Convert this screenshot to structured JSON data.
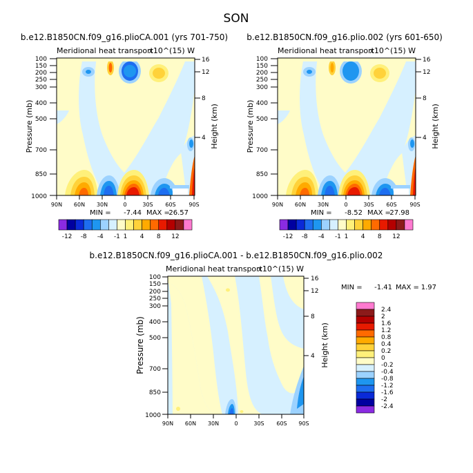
{
  "figure_title": "SON",
  "colors": {
    "background": "#ffffff",
    "main_cb": [
      "#8a2be2",
      "#0000a0",
      "#0a2ad8",
      "#1e6ef0",
      "#1e96f0",
      "#9cd2ff",
      "#d6f0ff",
      "#fffcc8",
      "#fff07a",
      "#ffd23a",
      "#ffaa00",
      "#ff6a00",
      "#e81a00",
      "#b40000",
      "#8c1a1a",
      "#ff7ad0"
    ],
    "diff_cb": [
      "#8a2be2",
      "#0000a0",
      "#0a2ad8",
      "#1e6ef0",
      "#1e96f0",
      "#9cd2ff",
      "#d6f0ff",
      "#fffcc8",
      "#fff07a",
      "#ffd23a",
      "#ffaa00",
      "#ff6a00",
      "#e81a00",
      "#b40000",
      "#8c1a1a",
      "#ff7ad0"
    ]
  },
  "chart_data": [
    {
      "type": "heatmap",
      "title": "b.e12.B1850CN.f09_g16.plioCA.001 (yrs 701-750)",
      "subtitle": "Meridional heat transport",
      "units": "x10^(15) W",
      "xlabel": "",
      "ylabel": "Pressure (mb)",
      "right_label": "Height (km)",
      "x_ticks": [
        "90N",
        "60N",
        "30N",
        "0",
        "30S",
        "60S",
        "90S"
      ],
      "y_ticks": [
        "100",
        "150",
        "200",
        "250",
        "300",
        "400",
        "500",
        "700",
        "850",
        "1000"
      ],
      "right_ticks": [
        "16",
        "12",
        "8",
        "4"
      ],
      "min": -7.44,
      "max": 26.57,
      "min_label": "MIN =",
      "min_value": "-7.44",
      "max_label": "MAX =",
      "max_value": "26.57"
    },
    {
      "type": "heatmap",
      "title": "b.e12.B1850CN.f09_g16.plio.002 (yrs 601-650)",
      "subtitle": "Meridional heat transport",
      "units": "x10^(15) W",
      "xlabel": "",
      "ylabel": "Pressure (mb)",
      "right_label": "Height (km)",
      "x_ticks": [
        "90N",
        "60N",
        "30N",
        "0",
        "30S",
        "60S",
        "90S"
      ],
      "y_ticks": [
        "100",
        "150",
        "200",
        "250",
        "300",
        "400",
        "500",
        "700",
        "850",
        "1000"
      ],
      "right_ticks": [
        "16",
        "12",
        "8",
        "4"
      ],
      "min": -8.52,
      "max": 27.98,
      "min_label": "MIN =",
      "min_value": "-8.52",
      "max_label": "MAX =",
      "max_value": "27.98"
    },
    {
      "type": "heatmap",
      "title": "b.e12.B1850CN.f09_g16.plioCA.001 - b.e12.B1850CN.f09_g16.plio.002",
      "subtitle": "Meridional heat transport",
      "units": "x10^(15) W",
      "xlabel": "",
      "ylabel": "Pressure (mb)",
      "right_label": "Height (km)",
      "x_ticks": [
        "90N",
        "60N",
        "30N",
        "0",
        "30S",
        "60S",
        "90S"
      ],
      "y_ticks": [
        "100",
        "150",
        "200",
        "250",
        "300",
        "400",
        "500",
        "700",
        "850",
        "1000"
      ],
      "right_ticks": [
        "16",
        "12",
        "8",
        "4"
      ],
      "min": -1.41,
      "max": 1.97,
      "min_label": "MIN =",
      "min_value": "-1.41",
      "max_label": "MAX =",
      "max_value": "1.97"
    }
  ],
  "colorbars": {
    "main": {
      "levels": [
        "-12",
        "-8",
        "-4",
        "-1",
        "1",
        "4",
        "8",
        "12"
      ]
    },
    "diff": {
      "levels": [
        "2.4",
        "2",
        "1.6",
        "1.2",
        "0.8",
        "0.4",
        "0.2",
        "0",
        "-0.2",
        "-0.4",
        "-0.8",
        "-1.2",
        "-1.6",
        "-2",
        "-2.4"
      ]
    }
  }
}
